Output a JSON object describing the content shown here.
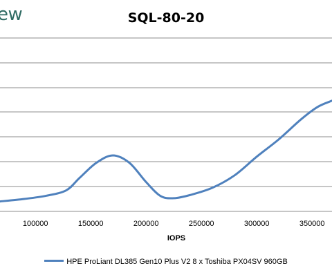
{
  "brand": {
    "text": "ew"
  },
  "chart_data": {
    "type": "line",
    "title": "SQL-80-20",
    "xlabel": "IOPS",
    "ylabel": "",
    "x_ticks": [
      "100000",
      "150000",
      "200000",
      "250000",
      "300000",
      "350000"
    ],
    "xlim": [
      68000,
      368000
    ],
    "grid": true,
    "legend_position": "bottom",
    "series": [
      {
        "name": "HPE ProLiant DL385 Gen10 Plus V2 8 x Toshiba PX04SV 960GB",
        "color": "#4f81bd",
        "points": [
          [
            68000,
            0.4
          ],
          [
            90000,
            0.5
          ],
          [
            110000,
            0.63
          ],
          [
            128000,
            0.85
          ],
          [
            140000,
            1.35
          ],
          [
            155000,
            1.95
          ],
          [
            170000,
            2.25
          ],
          [
            185000,
            1.95
          ],
          [
            200000,
            1.18
          ],
          [
            213000,
            0.62
          ],
          [
            225000,
            0.53
          ],
          [
            240000,
            0.66
          ],
          [
            260000,
            0.95
          ],
          [
            280000,
            1.45
          ],
          [
            300000,
            2.2
          ],
          [
            320000,
            2.9
          ],
          [
            340000,
            3.7
          ],
          [
            355000,
            4.2
          ],
          [
            368000,
            4.45
          ]
        ]
      }
    ]
  }
}
